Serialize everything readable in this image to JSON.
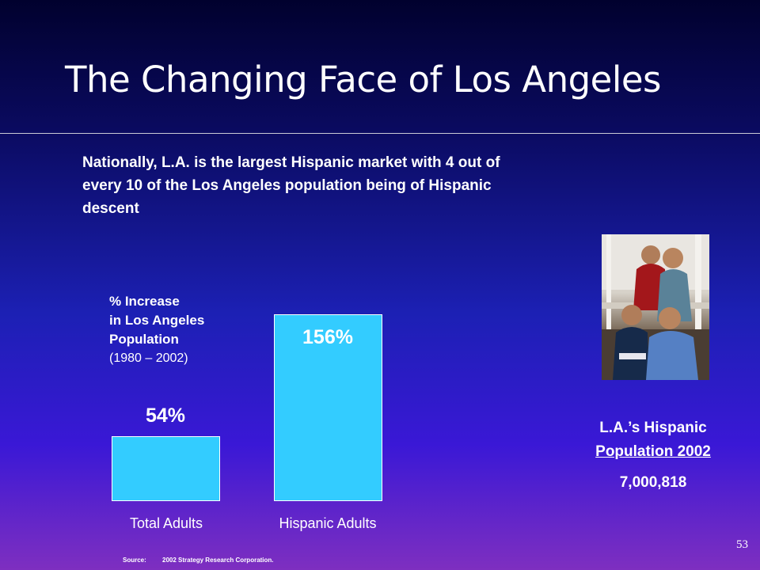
{
  "slide": {
    "title": "The Changing Face of Los Angeles",
    "intro": "Nationally, L.A. is the largest Hispanic market with 4 out of every 10 of the Los Angeles population being of Hispanic descent",
    "page_number": "53"
  },
  "chart_data": {
    "type": "bar",
    "title_lines": [
      "% Increase",
      "in Los Angeles",
      "Population"
    ],
    "subtitle": "(1980 – 2002)",
    "categories": [
      "Total Adults",
      "Hispanic Adults"
    ],
    "values": [
      54,
      156
    ],
    "value_labels": [
      "54%",
      "156%"
    ],
    "unit": "%",
    "bar_color": "#33ccff",
    "ylim": [
      0,
      156
    ],
    "grid": false
  },
  "sidebar": {
    "title_line1": "L.A.’s Hispanic",
    "title_line2": "Population 2002",
    "value": "7,000,818",
    "photo_icon": "family-photo-icon"
  },
  "footer": {
    "source_label": "Source:",
    "source_name": "2002 Strategy Research Corporation."
  }
}
